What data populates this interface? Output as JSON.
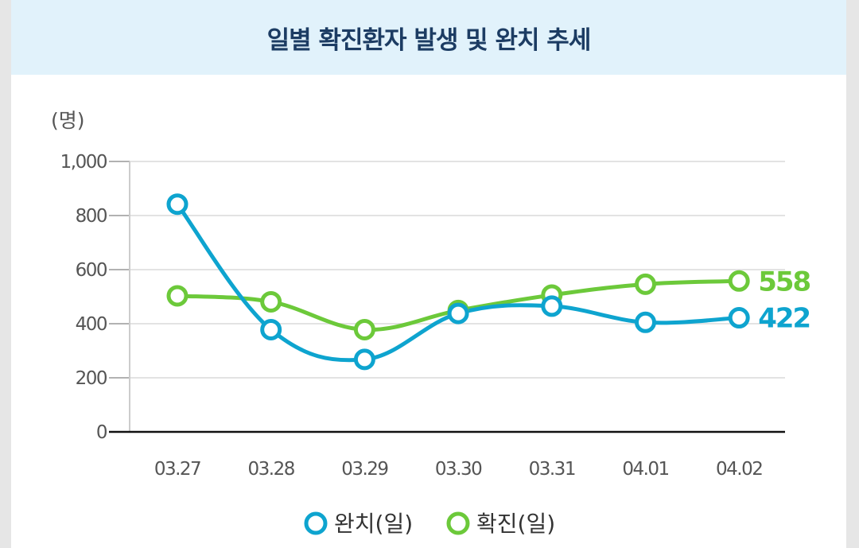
{
  "header": {
    "title": "일별 확진환자 발생 및 완치 추세"
  },
  "colors": {
    "recovered": "#0ea4cf",
    "confirmed": "#6cc93a",
    "grid": "#e3e3e3",
    "axis": "#111111"
  },
  "chart_data": {
    "type": "line",
    "title": "일별 확진환자 발생 및 완치 추세",
    "ylabel": "(명)",
    "xlabel": "",
    "ylim": [
      0,
      1000
    ],
    "yticks": [
      0,
      200,
      400,
      600,
      800,
      1000
    ],
    "ytick_labels": [
      "0",
      "200",
      "400",
      "600",
      "800",
      "1,000"
    ],
    "categories": [
      "03.27",
      "03.28",
      "03.29",
      "03.30",
      "03.31",
      "04.01",
      "04.02"
    ],
    "series": [
      {
        "name": "완치(일)",
        "values": [
          842,
          378,
          268,
          438,
          465,
          405,
          422
        ],
        "end_label": "422"
      },
      {
        "name": "확진(일)",
        "values": [
          503,
          481,
          378,
          449,
          506,
          546,
          558
        ],
        "end_label": "558"
      }
    ],
    "grid": true,
    "legend_position": "bottom-center"
  }
}
